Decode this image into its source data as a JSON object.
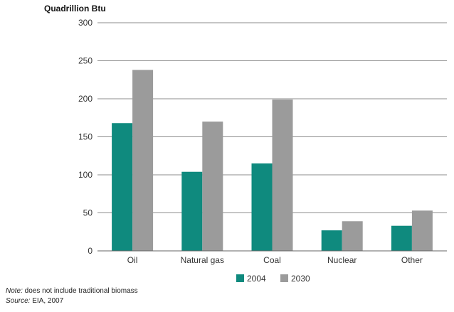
{
  "chart_data": {
    "type": "bar",
    "unit_label": "Quadrillion Btu",
    "categories": [
      "Oil",
      "Natural gas",
      "Coal",
      "Nuclear",
      "Other"
    ],
    "series": [
      {
        "name": "2004",
        "color": "#0f8a7e",
        "values": [
          168,
          104,
          115,
          27,
          33
        ]
      },
      {
        "name": "2030",
        "color": "#9b9b9b",
        "values": [
          238,
          170,
          199,
          39,
          53
        ]
      }
    ],
    "ylim": [
      0,
      300
    ],
    "yticks": [
      0,
      50,
      100,
      150,
      200,
      250,
      300
    ],
    "grid": true,
    "legend_position": "bottom-center"
  },
  "notes": {
    "note_label": "Note:",
    "note_text": " does not include traditional biomass",
    "source_label": "Source:",
    "source_text": " EIA, 2007"
  }
}
